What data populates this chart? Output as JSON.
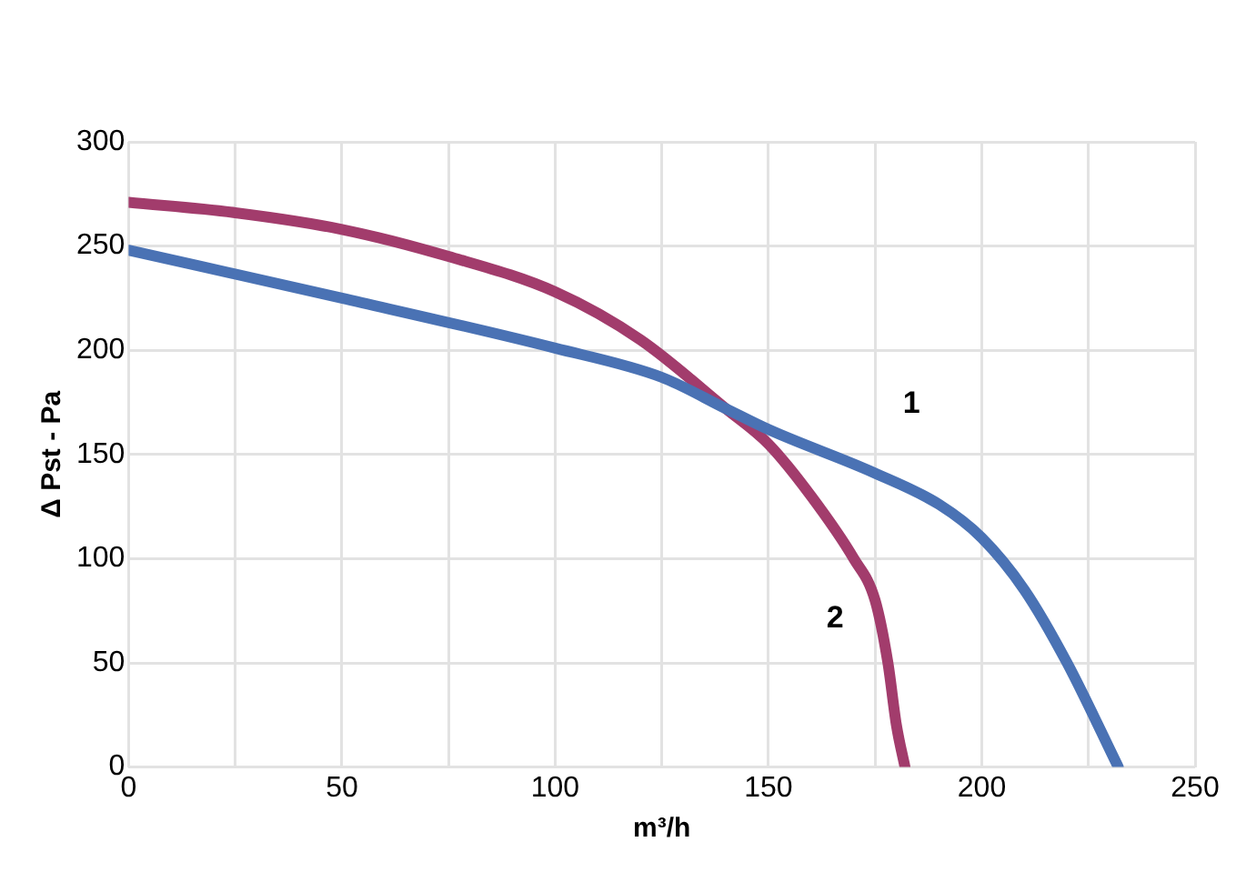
{
  "chart_data": {
    "type": "line",
    "xlabel": "m³/h",
    "ylabel": "Δ Pst - Pa",
    "xlim": [
      0,
      250
    ],
    "ylim": [
      0,
      300
    ],
    "xticks": [
      0,
      {
        "value": 25,
        "label": null
      },
      50,
      {
        "value": 75,
        "label": null
      },
      100,
      {
        "value": 125,
        "label": null
      },
      150,
      {
        "value": 175,
        "label": null
      },
      200,
      {
        "value": 225,
        "label": null
      },
      250
    ],
    "yticks": [
      0,
      50,
      100,
      150,
      200,
      250,
      300
    ],
    "grid": true,
    "legend": false,
    "marker": "none",
    "line_style": "solid",
    "series": [
      {
        "name": "1",
        "color": "#4a72b4",
        "x": [
          0,
          50,
          100,
          125,
          140,
          150,
          175,
          190,
          200,
          210,
          220,
          232
        ],
        "values": [
          248,
          225,
          201,
          187,
          172,
          162,
          141,
          126,
          110,
          85,
          50,
          0
        ]
      },
      {
        "name": "2",
        "color": "#a23c6c",
        "x": [
          0,
          25,
          50,
          75,
          100,
          120,
          140,
          150,
          160,
          170,
          175,
          178,
          180,
          182
        ],
        "values": [
          271,
          266,
          258,
          245,
          228,
          205,
          172,
          155,
          130,
          100,
          80,
          50,
          20,
          0
        ]
      }
    ]
  }
}
